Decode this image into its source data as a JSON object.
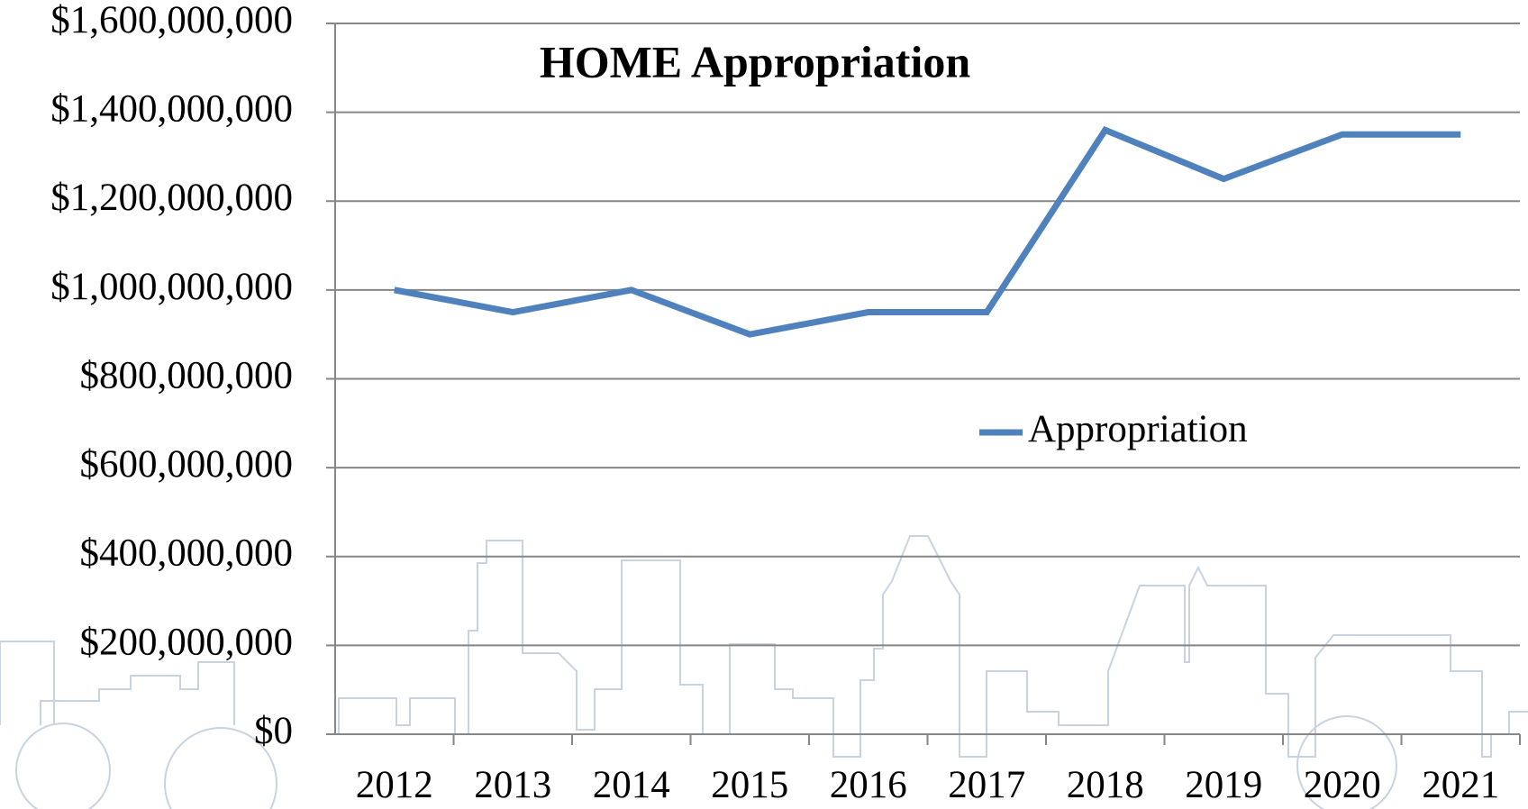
{
  "chart_data": {
    "type": "line",
    "title": "HOME Appropriation",
    "categories": [
      "2012",
      "2013",
      "2014",
      "2015",
      "2016",
      "2017",
      "2018",
      "2019",
      "2020",
      "2021"
    ],
    "series": [
      {
        "name": "Appropriation",
        "color": "#4f81bd",
        "values": [
          1000000000,
          950000000,
          1000000000,
          900000000,
          950000000,
          950000000,
          1360000000,
          1250000000,
          1350000000,
          1350000000
        ]
      }
    ],
    "ylim": [
      0,
      1600000000
    ],
    "yticks": [
      {
        "value": 0,
        "label": "$0"
      },
      {
        "value": 200000000,
        "label": "$200,000,000"
      },
      {
        "value": 400000000,
        "label": "$400,000,000"
      },
      {
        "value": 600000000,
        "label": "$600,000,000"
      },
      {
        "value": 800000000,
        "label": "$800,000,000"
      },
      {
        "value": 1000000000,
        "label": "$1,000,000,000"
      },
      {
        "value": 1200000000,
        "label": "$1,200,000,000"
      },
      {
        "value": 1400000000,
        "label": "$1,400,000,000"
      },
      {
        "value": 1600000000,
        "label": "$1,600,000,000"
      }
    ],
    "grid": true,
    "legend": "right"
  }
}
